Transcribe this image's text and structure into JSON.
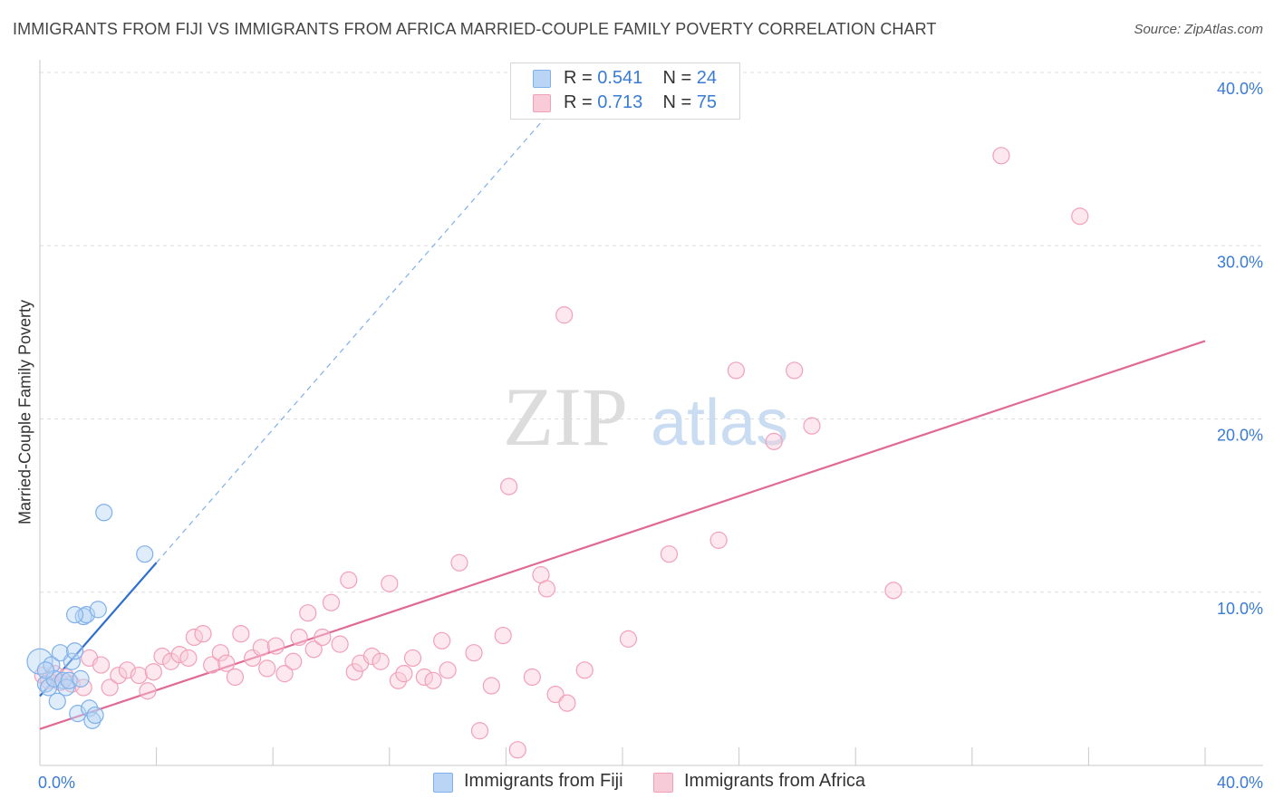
{
  "chart_data": {
    "type": "scatter",
    "title": "IMMIGRANTS FROM FIJI VS IMMIGRANTS FROM AFRICA MARRIED-COUPLE FAMILY POVERTY CORRELATION CHART",
    "source": "Source: ZipAtlas.com",
    "ylabel": "Married-Couple Family Poverty",
    "watermark": {
      "zip": "ZIP",
      "atlas": "atlas"
    },
    "xlim": [
      0,
      40
    ],
    "ylim": [
      0,
      40
    ],
    "x_tick_labels": {
      "min": "0.0%",
      "max": "40.0%"
    },
    "y_ticks": [
      {
        "value": 10,
        "label": "10.0%"
      },
      {
        "value": 20,
        "label": "20.0%"
      },
      {
        "value": 30,
        "label": "30.0%"
      },
      {
        "value": 40,
        "label": "40.0%"
      }
    ],
    "legend_stats": [
      {
        "r_label": "R = ",
        "r_value": "0.541",
        "n_label": "N = ",
        "n_value": "24"
      },
      {
        "r_label": "R = ",
        "r_value": "0.713",
        "n_label": "N = ",
        "n_value": "75"
      }
    ],
    "series": [
      {
        "name": "Immigrants from Fiji",
        "color": "#7fb0ea",
        "fill": "#b9d4f5",
        "line_color": "#2f6fd0",
        "trend": {
          "x0": 0.0,
          "y0": 4.0,
          "x1": 4.0,
          "y1": 11.7,
          "dashed_to_x": 17.5
        },
        "points": [
          [
            0.0,
            6.0
          ],
          [
            0.2,
            4.7
          ],
          [
            0.3,
            4.5
          ],
          [
            0.4,
            5.8
          ],
          [
            0.5,
            5.0
          ],
          [
            0.6,
            3.7
          ],
          [
            0.7,
            6.5
          ],
          [
            0.8,
            4.9
          ],
          [
            0.9,
            4.5
          ],
          [
            1.0,
            4.9
          ],
          [
            1.1,
            6.0
          ],
          [
            1.2,
            6.6
          ],
          [
            1.3,
            3.0
          ],
          [
            1.4,
            5.0
          ],
          [
            1.5,
            8.6
          ],
          [
            1.6,
            8.7
          ],
          [
            1.7,
            3.3
          ],
          [
            1.8,
            2.6
          ],
          [
            1.9,
            2.9
          ],
          [
            2.0,
            9.0
          ],
          [
            2.2,
            14.6
          ],
          [
            3.6,
            12.2
          ],
          [
            0.2,
            5.5
          ],
          [
            1.2,
            8.7
          ]
        ]
      },
      {
        "name": "Immigrants from Africa",
        "color": "#f2a0b8",
        "fill": "#f8cbd9",
        "line_color": "#e06a95",
        "trend": {
          "x0": 0.0,
          "y0": 2.1,
          "x1": 40.0,
          "y1": 24.5
        },
        "points": [
          [
            0.1,
            5.2
          ],
          [
            0.3,
            4.9
          ],
          [
            0.5,
            5.3
          ],
          [
            0.7,
            4.8
          ],
          [
            0.9,
            5.1
          ],
          [
            1.1,
            4.7
          ],
          [
            1.5,
            4.5
          ],
          [
            1.7,
            6.2
          ],
          [
            2.1,
            5.8
          ],
          [
            2.4,
            4.5
          ],
          [
            2.7,
            5.2
          ],
          [
            3.0,
            5.5
          ],
          [
            3.4,
            5.2
          ],
          [
            3.7,
            4.3
          ],
          [
            3.9,
            5.4
          ],
          [
            4.2,
            6.3
          ],
          [
            4.5,
            6.0
          ],
          [
            4.8,
            6.4
          ],
          [
            5.1,
            6.2
          ],
          [
            5.3,
            7.4
          ],
          [
            5.6,
            7.6
          ],
          [
            5.9,
            5.8
          ],
          [
            6.2,
            6.5
          ],
          [
            6.4,
            5.9
          ],
          [
            6.7,
            5.1
          ],
          [
            6.9,
            7.6
          ],
          [
            7.3,
            6.2
          ],
          [
            7.6,
            6.8
          ],
          [
            7.8,
            5.6
          ],
          [
            8.1,
            6.9
          ],
          [
            8.4,
            5.3
          ],
          [
            8.7,
            6.0
          ],
          [
            8.9,
            7.4
          ],
          [
            9.2,
            8.8
          ],
          [
            9.4,
            6.7
          ],
          [
            9.7,
            7.4
          ],
          [
            10.0,
            9.4
          ],
          [
            10.3,
            7.0
          ],
          [
            10.6,
            10.7
          ],
          [
            10.8,
            5.4
          ],
          [
            11.0,
            5.9
          ],
          [
            11.4,
            6.3
          ],
          [
            11.7,
            6.0
          ],
          [
            12.0,
            10.5
          ],
          [
            12.3,
            4.9
          ],
          [
            12.5,
            5.3
          ],
          [
            12.8,
            6.2
          ],
          [
            13.2,
            5.1
          ],
          [
            13.5,
            4.9
          ],
          [
            13.8,
            7.2
          ],
          [
            14.0,
            5.5
          ],
          [
            14.4,
            11.7
          ],
          [
            14.9,
            6.5
          ],
          [
            15.1,
            2.0
          ],
          [
            15.5,
            4.6
          ],
          [
            15.9,
            7.5
          ],
          [
            16.1,
            16.1
          ],
          [
            16.4,
            0.9
          ],
          [
            16.9,
            5.1
          ],
          [
            17.2,
            11.0
          ],
          [
            17.4,
            10.2
          ],
          [
            17.7,
            4.1
          ],
          [
            18.1,
            3.6
          ],
          [
            18.0,
            26.0
          ],
          [
            18.7,
            5.5
          ],
          [
            20.2,
            7.3
          ],
          [
            21.6,
            12.2
          ],
          [
            23.3,
            13.0
          ],
          [
            23.9,
            22.8
          ],
          [
            25.2,
            18.7
          ],
          [
            25.9,
            22.8
          ],
          [
            26.5,
            19.6
          ],
          [
            29.3,
            10.1
          ],
          [
            33.0,
            35.2
          ],
          [
            35.7,
            31.7
          ]
        ]
      }
    ]
  },
  "bottom_legend": [
    {
      "label": "Immigrants from Fiji"
    },
    {
      "label": "Immigrants from Africa"
    }
  ]
}
